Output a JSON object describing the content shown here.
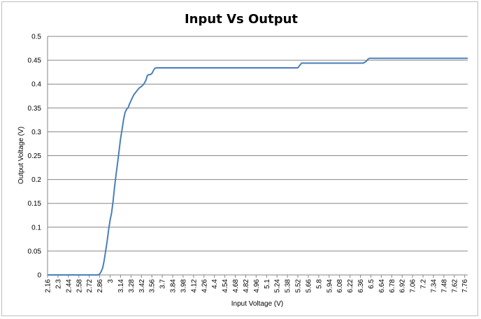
{
  "chart_data": {
    "type": "line",
    "title": "Input Vs Output",
    "xlabel": "Input Voltage (V)",
    "ylabel": "Output Voltage (V)",
    "ylim": [
      0,
      0.5
    ],
    "y_ticks": [
      "0",
      "0.05",
      "0.1",
      "0.15",
      "0.2",
      "0.25",
      "0.3",
      "0.35",
      "0.4",
      "0.45",
      "0.5"
    ],
    "x_tick_labels": [
      "2.16",
      "2.3",
      "2.44",
      "2.58",
      "2.72",
      "2.86",
      "3",
      "3.14",
      "3.28",
      "3.42",
      "3.56",
      "3.7",
      "3.84",
      "3.98",
      "4.12",
      "4.26",
      "4.4",
      "4.54",
      "4.68",
      "4.82",
      "4.96",
      "5.1",
      "5.24",
      "5.38",
      "5.52",
      "5.66",
      "5.8",
      "5.94",
      "6.08",
      "6.22",
      "6.36",
      "6.5",
      "6.64",
      "6.78",
      "6.92",
      "7.06",
      "7.2",
      "7.34",
      "7.48",
      "7.62",
      "7.76"
    ],
    "xlim": [
      2.16,
      7.8
    ],
    "grid": true,
    "line_color": "#4a7ebb",
    "series": [
      {
        "x": [
          2.16,
          2.84,
          2.86,
          2.88,
          2.9,
          2.92,
          2.94,
          2.96,
          2.98,
          3.0,
          3.02,
          3.04,
          3.06,
          3.08,
          3.1,
          3.12,
          3.14,
          3.16,
          3.18,
          3.2,
          3.22,
          3.24,
          3.26,
          3.28,
          3.3,
          3.32,
          3.34,
          3.36,
          3.38,
          3.4,
          3.42,
          3.44,
          3.46,
          3.48,
          3.5,
          3.52,
          3.54,
          3.56,
          3.58,
          3.6,
          3.62,
          3.64,
          3.66,
          3.68,
          5.52,
          5.55,
          5.57,
          6.4,
          6.44,
          6.46,
          6.48,
          7.8
        ],
        "y": [
          0,
          0,
          0.002,
          0.007,
          0.015,
          0.03,
          0.05,
          0.07,
          0.095,
          0.115,
          0.13,
          0.155,
          0.185,
          0.21,
          0.235,
          0.26,
          0.285,
          0.305,
          0.325,
          0.34,
          0.347,
          0.35,
          0.358,
          0.365,
          0.372,
          0.378,
          0.382,
          0.386,
          0.39,
          0.393,
          0.395,
          0.398,
          0.402,
          0.408,
          0.418,
          0.42,
          0.42,
          0.422,
          0.428,
          0.433,
          0.434,
          0.434,
          0.434,
          0.434,
          0.434,
          0.44,
          0.444,
          0.444,
          0.448,
          0.452,
          0.454,
          0.454
        ]
      }
    ]
  }
}
